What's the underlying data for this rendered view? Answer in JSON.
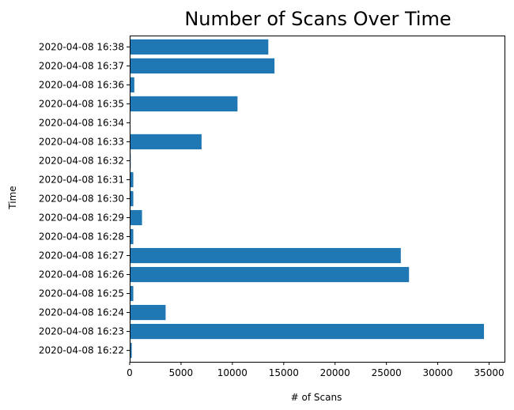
{
  "chart_data": {
    "type": "bar",
    "orientation": "horizontal",
    "title": "Number of Scans Over Time",
    "xlabel": "# of Scans",
    "ylabel": "Time",
    "xlim": [
      0,
      36500
    ],
    "xticks": [
      0,
      5000,
      10000,
      15000,
      20000,
      25000,
      30000,
      35000
    ],
    "xtick_labels": [
      "0",
      "5000",
      "10000",
      "15000",
      "20000",
      "25000",
      "30000",
      "35000"
    ],
    "grid": false,
    "bar_color": "#1f77b4",
    "categories": [
      "2020-04-08 16:22",
      "2020-04-08 16:23",
      "2020-04-08 16:24",
      "2020-04-08 16:25",
      "2020-04-08 16:26",
      "2020-04-08 16:27",
      "2020-04-08 16:28",
      "2020-04-08 16:29",
      "2020-04-08 16:30",
      "2020-04-08 16:31",
      "2020-04-08 16:32",
      "2020-04-08 16:33",
      "2020-04-08 16:34",
      "2020-04-08 16:35",
      "2020-04-08 16:36",
      "2020-04-08 16:37",
      "2020-04-08 16:38"
    ],
    "values": [
      200,
      34500,
      3500,
      350,
      27200,
      26400,
      350,
      1200,
      350,
      350,
      100,
      7000,
      0,
      10500,
      450,
      14100,
      13500
    ]
  }
}
